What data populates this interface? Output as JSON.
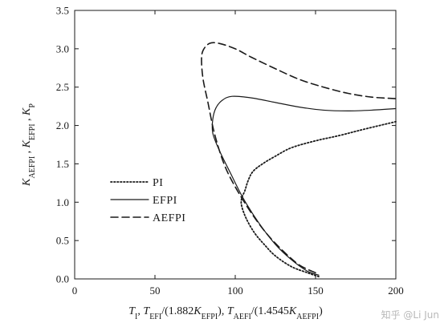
{
  "chart_data": {
    "type": "line",
    "xlim": [
      0,
      200
    ],
    "ylim": [
      0,
      3.5
    ],
    "x_ticks": [
      0,
      50,
      100,
      150,
      200
    ],
    "y_ticks": [
      0.0,
      0.5,
      1.0,
      1.5,
      2.0,
      2.5,
      3.0,
      3.5
    ],
    "y_tick_labels": [
      "0.0",
      "0.5",
      "1.0",
      "1.5",
      "2.0",
      "2.5",
      "3.0",
      "3.5"
    ],
    "grid": false,
    "legend_position": "middle-left",
    "xlabel": {
      "parts": [
        {
          "t": "T",
          "i": true
        },
        {
          "t": "I",
          "sub": true
        },
        {
          "t": ",  "
        },
        {
          "t": "T",
          "i": true
        },
        {
          "t": "EFI",
          "sub": true
        },
        {
          "t": "/(1.882"
        },
        {
          "t": "K",
          "i": true
        },
        {
          "t": "EFPI",
          "sub": true
        },
        {
          "t": "),  "
        },
        {
          "t": "T",
          "i": true
        },
        {
          "t": "AEFI",
          "sub": true
        },
        {
          "t": "/(1.4545"
        },
        {
          "t": "K",
          "i": true
        },
        {
          "t": "AEFPI",
          "sub": true
        },
        {
          "t": ")"
        }
      ]
    },
    "ylabel": {
      "parts": [
        {
          "t": "K",
          "i": true
        },
        {
          "t": "AEFPI",
          "sub": true
        },
        {
          "t": " ,  "
        },
        {
          "t": "K",
          "i": true
        },
        {
          "t": "EFPI",
          "sub": true
        },
        {
          "t": " ,  "
        },
        {
          "t": "K",
          "i": true
        },
        {
          "t": "P",
          "sub": true
        }
      ]
    },
    "series": [
      {
        "name": "PI",
        "style": "dotted",
        "points": [
          [
            152,
            0.03
          ],
          [
            145,
            0.08
          ],
          [
            135,
            0.16
          ],
          [
            125,
            0.3
          ],
          [
            118,
            0.45
          ],
          [
            112,
            0.6
          ],
          [
            107,
            0.78
          ],
          [
            104,
            0.95
          ],
          [
            104,
            1.05
          ],
          [
            106,
            1.15
          ],
          [
            108,
            1.28
          ],
          [
            111,
            1.4
          ],
          [
            117,
            1.5
          ],
          [
            125,
            1.6
          ],
          [
            135,
            1.71
          ],
          [
            150,
            1.8
          ],
          [
            165,
            1.87
          ],
          [
            180,
            1.95
          ],
          [
            200,
            2.05
          ]
        ]
      },
      {
        "name": "EFPI",
        "style": "solid",
        "points": [
          [
            152,
            0.05
          ],
          [
            145,
            0.1
          ],
          [
            135,
            0.25
          ],
          [
            125,
            0.45
          ],
          [
            115,
            0.72
          ],
          [
            105,
            1.05
          ],
          [
            97,
            1.38
          ],
          [
            90,
            1.68
          ],
          [
            86,
            1.9
          ],
          [
            86,
            2.08
          ],
          [
            88,
            2.23
          ],
          [
            92,
            2.33
          ],
          [
            98,
            2.38
          ],
          [
            110,
            2.36
          ],
          [
            125,
            2.3
          ],
          [
            140,
            2.24
          ],
          [
            155,
            2.2
          ],
          [
            170,
            2.19
          ],
          [
            185,
            2.2
          ],
          [
            200,
            2.22
          ]
        ]
      },
      {
        "name": "AEFPI",
        "style": "dashed",
        "points": [
          [
            150,
            0.08
          ],
          [
            140,
            0.18
          ],
          [
            130,
            0.36
          ],
          [
            120,
            0.58
          ],
          [
            110,
            0.86
          ],
          [
            100,
            1.2
          ],
          [
            93,
            1.5
          ],
          [
            87,
            1.9
          ],
          [
            83,
            2.3
          ],
          [
            80,
            2.6
          ],
          [
            79,
            2.85
          ],
          [
            80,
            2.98
          ],
          [
            84,
            3.07
          ],
          [
            90,
            3.07
          ],
          [
            100,
            3.0
          ],
          [
            110,
            2.89
          ],
          [
            125,
            2.74
          ],
          [
            140,
            2.6
          ],
          [
            155,
            2.5
          ],
          [
            170,
            2.42
          ],
          [
            185,
            2.37
          ],
          [
            200,
            2.35
          ]
        ]
      }
    ]
  },
  "watermark": "知乎 @Li Jun"
}
